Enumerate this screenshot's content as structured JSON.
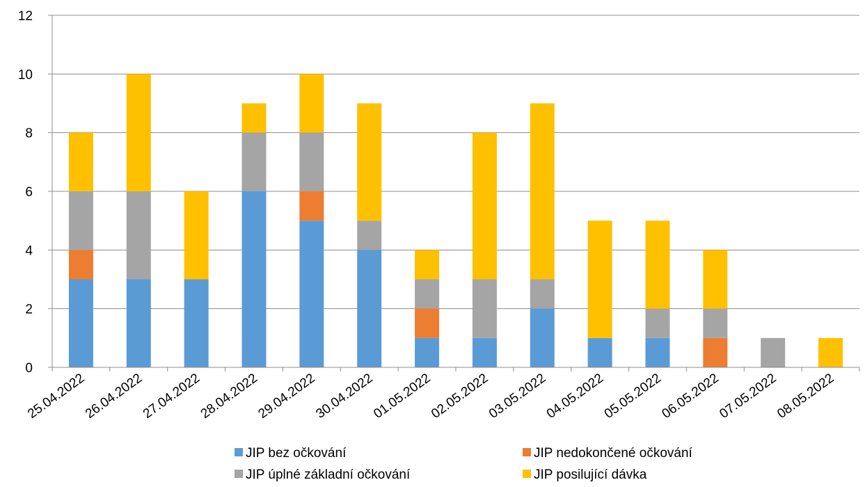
{
  "chart_data": {
    "type": "bar",
    "stacked": true,
    "categories": [
      "25.04.2022",
      "26.04.2022",
      "27.04.2022",
      "28.04.2022",
      "29.04.2022",
      "30.04.2022",
      "01.05.2022",
      "02.05.2022",
      "03.05.2022",
      "04.05.2022",
      "05.05.2022",
      "06.05.2022",
      "07.05.2022",
      "08.05.2022"
    ],
    "series": [
      {
        "name": "JIP bez očkování",
        "color": "#5B9BD5",
        "values": [
          3,
          3,
          3,
          6,
          5,
          4,
          1,
          1,
          2,
          1,
          1,
          0,
          0,
          0
        ]
      },
      {
        "name": "JIP nedokončené očkování",
        "color": "#ED7D31",
        "values": [
          1,
          0,
          0,
          0,
          1,
          0,
          1,
          0,
          0,
          0,
          0,
          1,
          0,
          0
        ]
      },
      {
        "name": "JIP úplné základní očkování",
        "color": "#A5A5A5",
        "values": [
          2,
          3,
          0,
          2,
          2,
          1,
          1,
          2,
          1,
          0,
          1,
          1,
          1,
          0
        ]
      },
      {
        "name": "JIP posilující dávka",
        "color": "#FFC000",
        "values": [
          2,
          4,
          3,
          1,
          2,
          4,
          1,
          5,
          6,
          4,
          3,
          2,
          0,
          1
        ]
      }
    ],
    "ylim": [
      0,
      12
    ],
    "yticks": [
      "0",
      "2",
      "4",
      "6",
      "8",
      "10",
      "12"
    ],
    "grid": true,
    "legend_position": "bottom",
    "title": "",
    "xlabel": "",
    "ylabel": ""
  }
}
